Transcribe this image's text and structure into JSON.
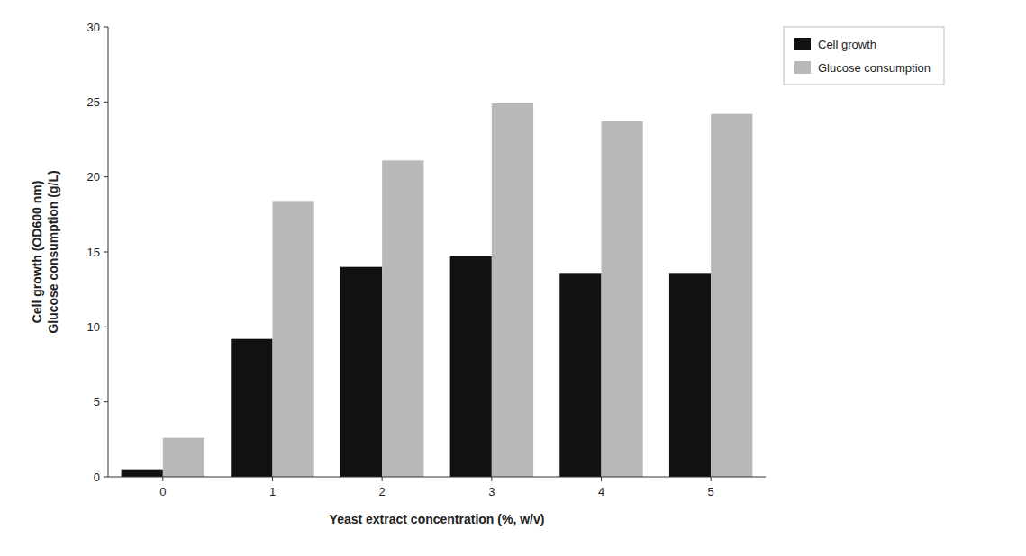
{
  "chart_data": {
    "type": "bar",
    "xlabel": "Yeast extract concentration (%, w/v)",
    "ylabel": "Cell growth (OD600 nm)\nGlucose consumption (g/L)",
    "categories": [
      0,
      1,
      2,
      3,
      4,
      5
    ],
    "series": [
      {
        "name": "Cell growth",
        "color": "#111111",
        "values": [
          0.5,
          9.2,
          14.0,
          14.7,
          13.6,
          13.6
        ]
      },
      {
        "name": "Glucose consumption",
        "color": "#b8b8b8",
        "values": [
          2.6,
          18.4,
          21.1,
          24.9,
          23.7,
          24.2
        ]
      }
    ],
    "ylim": [
      0,
      30
    ],
    "yticks": [
      0,
      5,
      10,
      15,
      20,
      25,
      30
    ],
    "grid": false,
    "legend": "right"
  }
}
